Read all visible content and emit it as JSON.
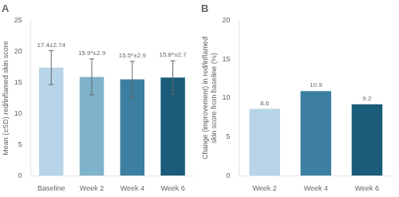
{
  "chart_data": [
    {
      "type": "bar",
      "title": "A",
      "categories": [
        "Baseline",
        "Week 2",
        "Week 4",
        "Week 6"
      ],
      "values": [
        17.4,
        15.9,
        15.5,
        15.8
      ],
      "errors": [
        2.74,
        2.9,
        2.9,
        2.7
      ],
      "value_labels": [
        "17.4±2.74",
        "15.9*±2.9",
        "15.5*±2.9",
        "15.8*±2.7"
      ],
      "data_labels": true,
      "colors": [
        "#b8d4e8",
        "#7fb3cc",
        "#3d7fa0",
        "#1a5c7a"
      ],
      "ylabel": "Mean (±SD) red/inflamed skin score",
      "ylim": [
        0,
        25
      ],
      "yticks": [
        0,
        5,
        10,
        15,
        20,
        25
      ],
      "grid": false
    },
    {
      "type": "bar",
      "title": "B",
      "categories": [
        "Week 2",
        "Week 4",
        "Week 6"
      ],
      "values": [
        8.6,
        10.9,
        9.2
      ],
      "data_labels": true,
      "colors": [
        "#b8d4e8",
        "#3d7fa0",
        "#1a5c7a"
      ],
      "ylabel": "Change (improvement) in red/inflamed\nskin score from baseline (%)",
      "ylim": [
        0,
        20
      ],
      "yticks": [
        0,
        5,
        10,
        15,
        20
      ],
      "grid": false
    }
  ]
}
